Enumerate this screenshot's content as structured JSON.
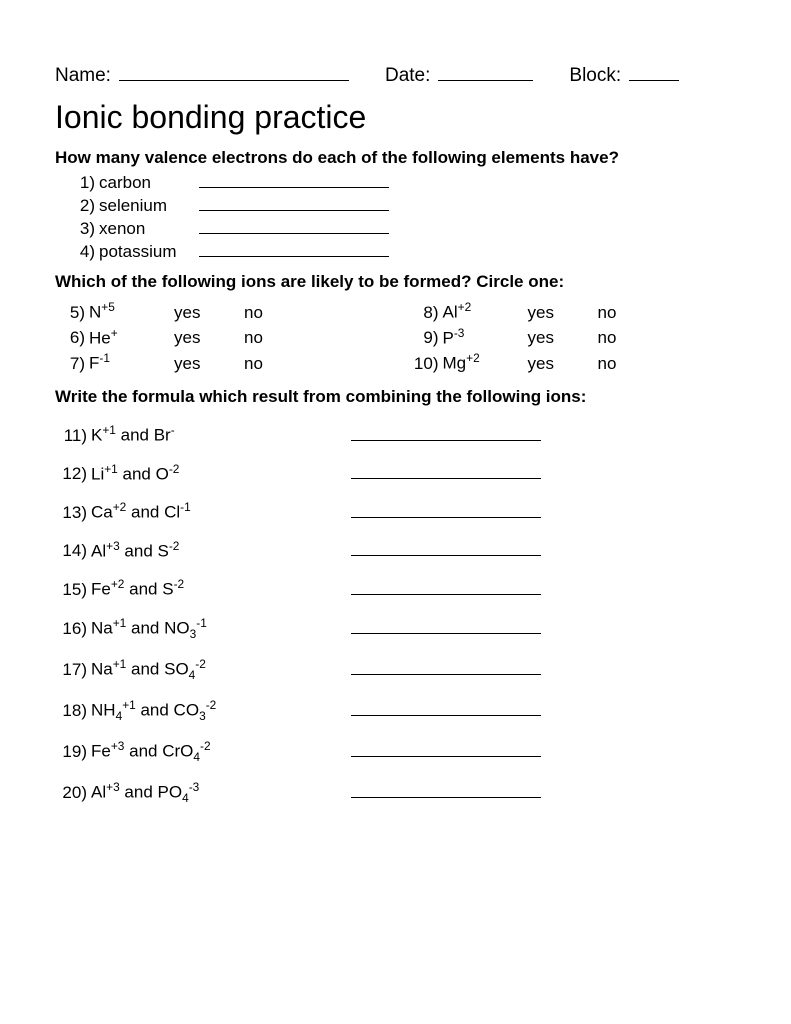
{
  "header": {
    "name_label": "Name:",
    "date_label": "Date:",
    "block_label": "Block:"
  },
  "title": "Ionic bonding practice",
  "section1": {
    "prompt": "How many valence electrons do each of the following elements have?",
    "items": [
      {
        "num": "1)",
        "label": "carbon"
      },
      {
        "num": "2)",
        "label": "selenium"
      },
      {
        "num": "3)",
        "label": "xenon"
      },
      {
        "num": "4)",
        "label": "potassium"
      }
    ]
  },
  "section2": {
    "prompt": "Which of the following ions are likely to be formed? Circle one:",
    "yes": "yes",
    "no": "no",
    "left": [
      {
        "num": "5)",
        "html": "N<sup>+5</sup>"
      },
      {
        "num": "6)",
        "html": "He<sup>+</sup>"
      },
      {
        "num": "7)",
        "html": "F<sup>-1</sup>"
      }
    ],
    "right": [
      {
        "num": "8)",
        "html": "Al<sup>+2</sup>"
      },
      {
        "num": "9)",
        "html": "P<sup>-3</sup>"
      },
      {
        "num": "10)",
        "html": "Mg<sup>+2</sup>"
      }
    ]
  },
  "section3": {
    "prompt": "Write the formula which result from combining the following ions:",
    "items": [
      {
        "num": "11)",
        "html": "K<sup>+1</sup> and Br<sup>-</sup>"
      },
      {
        "num": "12)",
        "html": "Li<sup>+1</sup> and O<sup>-2</sup>"
      },
      {
        "num": "13)",
        "html": "Ca<sup>+2</sup> and Cl<sup>-1</sup>"
      },
      {
        "num": "14)",
        "html": "Al<sup>+3</sup> and S<sup>-2</sup>"
      },
      {
        "num": "15)",
        "html": "Fe<sup>+2</sup> and S<sup>-2</sup>"
      },
      {
        "num": "16)",
        "html": "Na<sup>+1</sup> and NO<sub>3</sub><sup>-1</sup>"
      },
      {
        "num": "17)",
        "html": "Na<sup>+1</sup> and SO<sub>4</sub><sup>-2</sup>"
      },
      {
        "num": "18)",
        "html": "NH<sub>4</sub><sup>+1</sup> and CO<sub>3</sub><sup>-2</sup>"
      },
      {
        "num": "19)",
        "html": "Fe<sup>+3</sup> and CrO<sub>4</sub><sup>-2</sup>"
      },
      {
        "num": "20)",
        "html": "Al<sup>+3</sup> and PO<sub>4</sub><sup>-3</sup>"
      }
    ]
  }
}
